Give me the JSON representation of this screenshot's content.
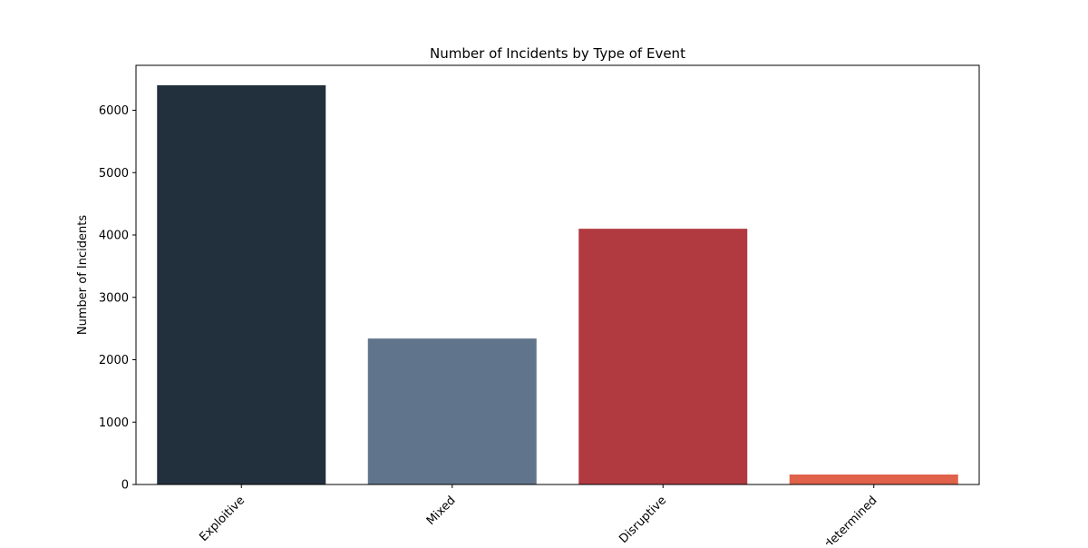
{
  "chart_data": {
    "type": "bar",
    "title": "Number of Incidents by Type of Event",
    "xlabel": "",
    "ylabel": "Number of Incidents",
    "categories": [
      "Exploitive",
      "Mixed",
      "Disruptive",
      "Undetermined"
    ],
    "values": [
      6400,
      2340,
      4100,
      160
    ],
    "colors": [
      "#222f3c",
      "#60758c",
      "#b13a40",
      "#e0624a"
    ],
    "ylim": [
      0,
      6720
    ],
    "yticks": [
      0,
      1000,
      2000,
      3000,
      4000,
      5000,
      6000
    ],
    "grid": false,
    "legend": "none"
  }
}
